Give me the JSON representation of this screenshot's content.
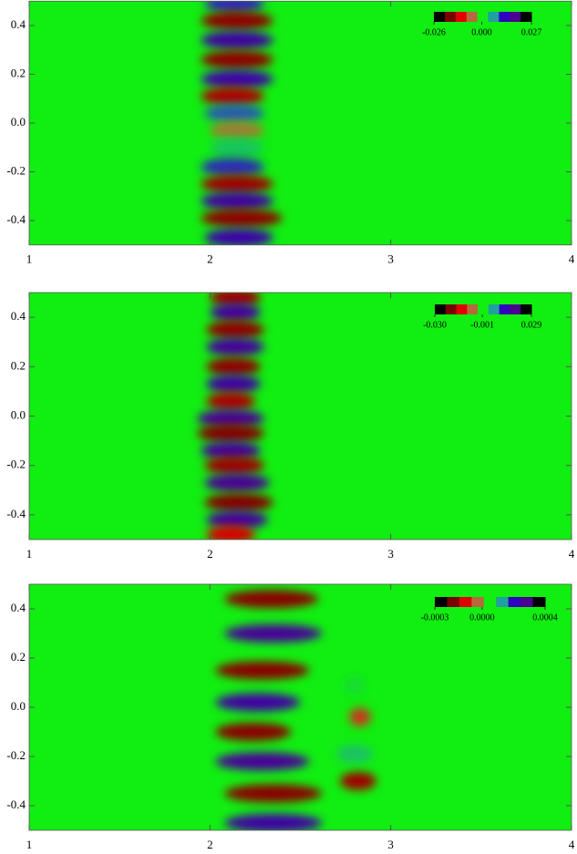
{
  "chart_data": [
    {
      "type": "contour",
      "background": "#11ee11",
      "xlim": [
        1,
        4
      ],
      "xticks": [
        1,
        2,
        3,
        4
      ],
      "ylim": [
        -0.5,
        0.5
      ],
      "yticks": [
        {
          "value": -0.4,
          "label": "-0.4"
        },
        {
          "value": -0.2,
          "label": "-0.2"
        },
        {
          "value": 0,
          "label": "0.0"
        },
        {
          "value": 0.2,
          "label": "0.2"
        },
        {
          "value": 0.4,
          "label": "0.4"
        }
      ],
      "colorscale": [
        "#000000",
        "#7a0000",
        "#e00000",
        "#b8683a",
        "#11ee11",
        "#20a0a0",
        "#3000c0",
        "#4a0090",
        "#000000"
      ],
      "zlim": [
        -0.026,
        0.027
      ],
      "zticks": [
        {
          "value": -0.026,
          "label": "-0.026"
        },
        {
          "value": 0,
          "label": "0.000"
        },
        {
          "value": 0.027,
          "label": "0.027"
        }
      ],
      "blobs": [
        {
          "x": [
            1.97,
            2.3
          ],
          "y": 0.49,
          "value": 0.012
        },
        {
          "x": [
            1.95,
            2.35
          ],
          "y": 0.42,
          "value": -0.018
        },
        {
          "x": [
            1.95,
            2.35
          ],
          "y": 0.34,
          "value": 0.018
        },
        {
          "x": [
            1.95,
            2.35
          ],
          "y": 0.26,
          "value": -0.018
        },
        {
          "x": [
            1.95,
            2.35
          ],
          "y": 0.18,
          "value": 0.017
        },
        {
          "x": [
            1.95,
            2.3
          ],
          "y": 0.11,
          "value": -0.016
        },
        {
          "x": [
            1.97,
            2.3
          ],
          "y": 0.04,
          "value": 0.01
        },
        {
          "x": [
            2.0,
            2.3
          ],
          "y": -0.03,
          "value": -0.005
        },
        {
          "x": [
            2.0,
            2.3
          ],
          "y": -0.1,
          "value": 0.004
        },
        {
          "x": [
            1.95,
            2.3
          ],
          "y": -0.18,
          "value": 0.012
        },
        {
          "x": [
            1.95,
            2.35
          ],
          "y": -0.25,
          "value": -0.017
        },
        {
          "x": [
            1.95,
            2.35
          ],
          "y": -0.32,
          "value": 0.018
        },
        {
          "x": [
            1.95,
            2.4
          ],
          "y": -0.39,
          "value": -0.018
        },
        {
          "x": [
            1.97,
            2.35
          ],
          "y": -0.47,
          "value": 0.017
        }
      ]
    },
    {
      "type": "contour",
      "background": "#11ee11",
      "xlim": [
        1,
        4
      ],
      "xticks": [
        1,
        2,
        3,
        4
      ],
      "ylim": [
        -0.5,
        0.5
      ],
      "yticks": [
        {
          "value": -0.4,
          "label": "-0.4"
        },
        {
          "value": -0.2,
          "label": "-0.2"
        },
        {
          "value": 0,
          "label": "0.0"
        },
        {
          "value": 0.2,
          "label": "0.2"
        },
        {
          "value": 0.4,
          "label": "0.4"
        }
      ],
      "colorscale": [
        "#000000",
        "#7a0000",
        "#e00000",
        "#b8683a",
        "#11ee11",
        "#20a0a0",
        "#3000c0",
        "#4a0090",
        "#000000"
      ],
      "zlim": [
        -0.03,
        0.029
      ],
      "zticks": [
        {
          "value": -0.03,
          "label": "-0.030"
        },
        {
          "value": -0.001,
          "label": "-0.001"
        },
        {
          "value": 0.029,
          "label": "0.029"
        }
      ],
      "blobs": [
        {
          "x": [
            2.0,
            2.28
          ],
          "y": 0.48,
          "value": -0.02
        },
        {
          "x": [
            2.0,
            2.28
          ],
          "y": 0.42,
          "value": 0.02
        },
        {
          "x": [
            1.98,
            2.3
          ],
          "y": 0.35,
          "value": -0.021
        },
        {
          "x": [
            1.98,
            2.3
          ],
          "y": 0.28,
          "value": 0.02
        },
        {
          "x": [
            1.98,
            2.28
          ],
          "y": 0.2,
          "value": -0.021
        },
        {
          "x": [
            1.98,
            2.28
          ],
          "y": 0.13,
          "value": 0.019
        },
        {
          "x": [
            1.98,
            2.25
          ],
          "y": 0.06,
          "value": -0.019
        },
        {
          "x": [
            1.93,
            2.3
          ],
          "y": -0.01,
          "value": 0.021
        },
        {
          "x": [
            1.93,
            2.3
          ],
          "y": -0.07,
          "value": -0.022
        },
        {
          "x": [
            1.95,
            2.28
          ],
          "y": -0.14,
          "value": 0.02
        },
        {
          "x": [
            1.97,
            2.3
          ],
          "y": -0.2,
          "value": -0.02
        },
        {
          "x": [
            1.97,
            2.33
          ],
          "y": -0.27,
          "value": 0.021
        },
        {
          "x": [
            1.97,
            2.35
          ],
          "y": -0.35,
          "value": -0.022
        },
        {
          "x": [
            1.98,
            2.32
          ],
          "y": -0.42,
          "value": 0.02
        },
        {
          "x": [
            1.98,
            2.25
          ],
          "y": -0.48,
          "value": -0.016
        }
      ]
    },
    {
      "type": "contour",
      "background": "#11ee11",
      "xlim": [
        1,
        4
      ],
      "xticks": [
        1,
        2,
        3,
        4
      ],
      "ylim": [
        -0.5,
        0.5
      ],
      "yticks": [
        {
          "value": -0.4,
          "label": "-0.4"
        },
        {
          "value": -0.2,
          "label": "-0.2"
        },
        {
          "value": 0,
          "label": "0.0"
        },
        {
          "value": 0.2,
          "label": "0.2"
        },
        {
          "value": 0.4,
          "label": "0.4"
        }
      ],
      "colorscale": [
        "#000000",
        "#7a0000",
        "#e00000",
        "#b8683a",
        "#11ee11",
        "#20a0a0",
        "#3000c0",
        "#4a0090",
        "#000000"
      ],
      "zlim": [
        -0.0003,
        0.0004
      ],
      "zticks": [
        {
          "value": -0.0003,
          "label": "-0.0003"
        },
        {
          "value": 0,
          "label": "0.0000"
        },
        {
          "value": 0.0004,
          "label": "0.0004"
        }
      ],
      "blobs": [
        {
          "x": [
            2.08,
            2.6
          ],
          "y": 0.44,
          "value": -0.0002
        },
        {
          "x": [
            2.08,
            2.62
          ],
          "y": 0.3,
          "value": 0.0003
        },
        {
          "x": [
            2.03,
            2.55
          ],
          "y": 0.15,
          "value": -0.0002
        },
        {
          "x": [
            2.03,
            2.5
          ],
          "y": 0.02,
          "value": 0.00028
        },
        {
          "x": [
            2.03,
            2.45
          ],
          "y": -0.1,
          "value": -0.0002
        },
        {
          "x": [
            2.03,
            2.55
          ],
          "y": -0.22,
          "value": 0.0003
        },
        {
          "x": [
            2.08,
            2.62
          ],
          "y": -0.35,
          "value": -0.0002
        },
        {
          "x": [
            2.08,
            2.62
          ],
          "y": -0.47,
          "value": 0.00028
        },
        {
          "x": [
            2.72,
            2.92
          ],
          "y": -0.3,
          "value": -0.00018
        },
        {
          "x": [
            2.7,
            2.9
          ],
          "y": -0.19,
          "value": 0.0001
        },
        {
          "x": [
            2.77,
            2.89
          ],
          "y": -0.04,
          "value": -8e-05
        },
        {
          "x": [
            2.74,
            2.86
          ],
          "y": 0.09,
          "value": 7e-05
        }
      ]
    }
  ]
}
